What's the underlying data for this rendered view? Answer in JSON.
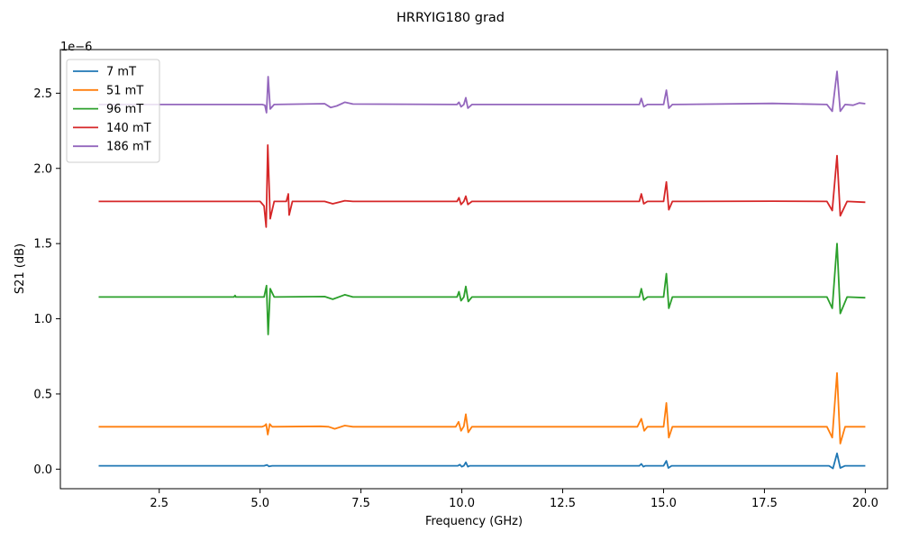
{
  "chart_data": {
    "type": "line",
    "title": "HRRYIG180 grad",
    "xlabel": "Frequency (GHz)",
    "ylabel": "S21 (dB)",
    "y_offset_text": "1e−6",
    "xlim": [
      0.05,
      20.55
    ],
    "ylim": [
      -1.3e-07,
      2.79e-06
    ],
    "xticks": [
      2.5,
      5.0,
      7.5,
      10.0,
      12.5,
      15.0,
      17.5,
      20.0
    ],
    "xtick_labels": [
      "2.5",
      "5.0",
      "7.5",
      "10.0",
      "12.5",
      "15.0",
      "17.5",
      "20.0"
    ],
    "yticks": [
      0.0,
      5e-07,
      1e-06,
      1.5e-06,
      2e-06,
      2.5e-06
    ],
    "ytick_labels": [
      "0.0",
      "0.5",
      "1.0",
      "1.5",
      "2.0",
      "2.5"
    ],
    "grid": false,
    "legend_position": "top-left",
    "series": [
      {
        "name": "7 mT",
        "color": "#1f77b4",
        "points": [
          [
            1.0,
            2.2e-08
          ],
          [
            5.1,
            2.2e-08
          ],
          [
            5.17,
            2.8e-08
          ],
          [
            5.22,
            1.8e-08
          ],
          [
            5.3,
            2.2e-08
          ],
          [
            9.9,
            2.2e-08
          ],
          [
            9.95,
            3e-08
          ],
          [
            10.0,
            1.6e-08
          ],
          [
            10.05,
            2.2e-08
          ],
          [
            10.1,
            4.5e-08
          ],
          [
            10.15,
            1.6e-08
          ],
          [
            10.2,
            2.2e-08
          ],
          [
            14.4,
            2.2e-08
          ],
          [
            14.45,
            3.5e-08
          ],
          [
            14.5,
            1.6e-08
          ],
          [
            14.55,
            2.2e-08
          ],
          [
            15.0,
            2.2e-08
          ],
          [
            15.07,
            5.5e-08
          ],
          [
            15.12,
            8e-09
          ],
          [
            15.2,
            2.2e-08
          ],
          [
            19.1,
            2.2e-08
          ],
          [
            19.2,
            5e-09
          ],
          [
            19.3,
            1.05e-07
          ],
          [
            19.38,
            8e-09
          ],
          [
            19.5,
            2.2e-08
          ],
          [
            20.0,
            2.2e-08
          ]
        ]
      },
      {
        "name": "51 mT",
        "color": "#ff7f0e",
        "points": [
          [
            1.0,
            2.82e-07
          ],
          [
            5.05,
            2.82e-07
          ],
          [
            5.12,
            2.9e-07
          ],
          [
            5.15,
            3e-07
          ],
          [
            5.19,
            2.3e-07
          ],
          [
            5.24,
            3e-07
          ],
          [
            5.3,
            2.82e-07
          ],
          [
            6.5,
            2.85e-07
          ],
          [
            6.7,
            2.82e-07
          ],
          [
            6.85,
            2.68e-07
          ],
          [
            7.1,
            2.9e-07
          ],
          [
            7.3,
            2.82e-07
          ],
          [
            9.85,
            2.82e-07
          ],
          [
            9.92,
            3.15e-07
          ],
          [
            9.98,
            2.55e-07
          ],
          [
            10.05,
            2.85e-07
          ],
          [
            10.1,
            3.65e-07
          ],
          [
            10.16,
            2.45e-07
          ],
          [
            10.25,
            2.82e-07
          ],
          [
            14.35,
            2.82e-07
          ],
          [
            14.45,
            3.35e-07
          ],
          [
            14.52,
            2.55e-07
          ],
          [
            14.6,
            2.82e-07
          ],
          [
            15.0,
            2.82e-07
          ],
          [
            15.07,
            4.4e-07
          ],
          [
            15.13,
            2.1e-07
          ],
          [
            15.22,
            2.82e-07
          ],
          [
            19.05,
            2.82e-07
          ],
          [
            19.18,
            2.1e-07
          ],
          [
            19.3,
            6.4e-07
          ],
          [
            19.38,
            1.7e-07
          ],
          [
            19.5,
            2.82e-07
          ],
          [
            20.0,
            2.82e-07
          ]
        ]
      },
      {
        "name": "96 mT",
        "color": "#2ca02c",
        "points": [
          [
            1.0,
            1.145e-06
          ],
          [
            4.35,
            1.145e-06
          ],
          [
            4.38,
            1.155e-06
          ],
          [
            4.4,
            1.145e-06
          ],
          [
            5.1,
            1.145e-06
          ],
          [
            5.16,
            1.22e-06
          ],
          [
            5.2,
            8.95e-07
          ],
          [
            5.25,
            1.2e-06
          ],
          [
            5.35,
            1.145e-06
          ],
          [
            6.6,
            1.148e-06
          ],
          [
            6.8,
            1.13e-06
          ],
          [
            7.1,
            1.16e-06
          ],
          [
            7.3,
            1.145e-06
          ],
          [
            9.88,
            1.145e-06
          ],
          [
            9.93,
            1.18e-06
          ],
          [
            9.98,
            1.12e-06
          ],
          [
            10.05,
            1.145e-06
          ],
          [
            10.1,
            1.215e-06
          ],
          [
            10.16,
            1.115e-06
          ],
          [
            10.25,
            1.145e-06
          ],
          [
            14.4,
            1.145e-06
          ],
          [
            14.45,
            1.2e-06
          ],
          [
            14.51,
            1.125e-06
          ],
          [
            14.6,
            1.145e-06
          ],
          [
            15.0,
            1.145e-06
          ],
          [
            15.07,
            1.3e-06
          ],
          [
            15.13,
            1.07e-06
          ],
          [
            15.22,
            1.145e-06
          ],
          [
            19.05,
            1.145e-06
          ],
          [
            19.18,
            1.07e-06
          ],
          [
            19.3,
            1.5e-06
          ],
          [
            19.38,
            1.035e-06
          ],
          [
            19.55,
            1.145e-06
          ],
          [
            20.0,
            1.14e-06
          ]
        ]
      },
      {
        "name": "140 mT",
        "color": "#d62728",
        "points": [
          [
            1.0,
            1.78e-06
          ],
          [
            5.0,
            1.78e-06
          ],
          [
            5.1,
            1.75e-06
          ],
          [
            5.15,
            1.61e-06
          ],
          [
            5.19,
            2.155e-06
          ],
          [
            5.25,
            1.665e-06
          ],
          [
            5.35,
            1.78e-06
          ],
          [
            5.65,
            1.78e-06
          ],
          [
            5.7,
            1.83e-06
          ],
          [
            5.72,
            1.69e-06
          ],
          [
            5.8,
            1.78e-06
          ],
          [
            6.6,
            1.78e-06
          ],
          [
            6.8,
            1.765e-06
          ],
          [
            7.1,
            1.785e-06
          ],
          [
            7.3,
            1.78e-06
          ],
          [
            9.88,
            1.78e-06
          ],
          [
            9.93,
            1.805e-06
          ],
          [
            9.98,
            1.76e-06
          ],
          [
            10.05,
            1.78e-06
          ],
          [
            10.1,
            1.815e-06
          ],
          [
            10.15,
            1.76e-06
          ],
          [
            10.25,
            1.78e-06
          ],
          [
            14.4,
            1.78e-06
          ],
          [
            14.45,
            1.83e-06
          ],
          [
            14.51,
            1.765e-06
          ],
          [
            14.6,
            1.78e-06
          ],
          [
            15.0,
            1.78e-06
          ],
          [
            15.07,
            1.91e-06
          ],
          [
            15.13,
            1.725e-06
          ],
          [
            15.22,
            1.78e-06
          ],
          [
            17.7,
            1.782e-06
          ],
          [
            19.05,
            1.78e-06
          ],
          [
            19.18,
            1.72e-06
          ],
          [
            19.3,
            2.085e-06
          ],
          [
            19.38,
            1.685e-06
          ],
          [
            19.55,
            1.78e-06
          ],
          [
            20.0,
            1.775e-06
          ]
        ]
      },
      {
        "name": "186 mT",
        "color": "#9467bd",
        "points": [
          [
            1.0,
            2.425e-06
          ],
          [
            5.05,
            2.425e-06
          ],
          [
            5.12,
            2.42e-06
          ],
          [
            5.16,
            2.37e-06
          ],
          [
            5.2,
            2.61e-06
          ],
          [
            5.25,
            2.395e-06
          ],
          [
            5.35,
            2.425e-06
          ],
          [
            6.6,
            2.43e-06
          ],
          [
            6.75,
            2.405e-06
          ],
          [
            6.9,
            2.415e-06
          ],
          [
            7.1,
            2.44e-06
          ],
          [
            7.3,
            2.428e-06
          ],
          [
            9.88,
            2.425e-06
          ],
          [
            9.93,
            2.44e-06
          ],
          [
            9.98,
            2.41e-06
          ],
          [
            10.05,
            2.425e-06
          ],
          [
            10.1,
            2.47e-06
          ],
          [
            10.15,
            2.4e-06
          ],
          [
            10.25,
            2.425e-06
          ],
          [
            14.4,
            2.425e-06
          ],
          [
            14.45,
            2.465e-06
          ],
          [
            14.51,
            2.41e-06
          ],
          [
            14.6,
            2.425e-06
          ],
          [
            15.0,
            2.425e-06
          ],
          [
            15.07,
            2.52e-06
          ],
          [
            15.13,
            2.4e-06
          ],
          [
            15.22,
            2.425e-06
          ],
          [
            17.7,
            2.432e-06
          ],
          [
            19.05,
            2.425e-06
          ],
          [
            19.18,
            2.38e-06
          ],
          [
            19.3,
            2.645e-06
          ],
          [
            19.38,
            2.38e-06
          ],
          [
            19.5,
            2.425e-06
          ],
          [
            19.7,
            2.42e-06
          ],
          [
            19.85,
            2.435e-06
          ],
          [
            20.0,
            2.43e-06
          ]
        ]
      }
    ]
  }
}
